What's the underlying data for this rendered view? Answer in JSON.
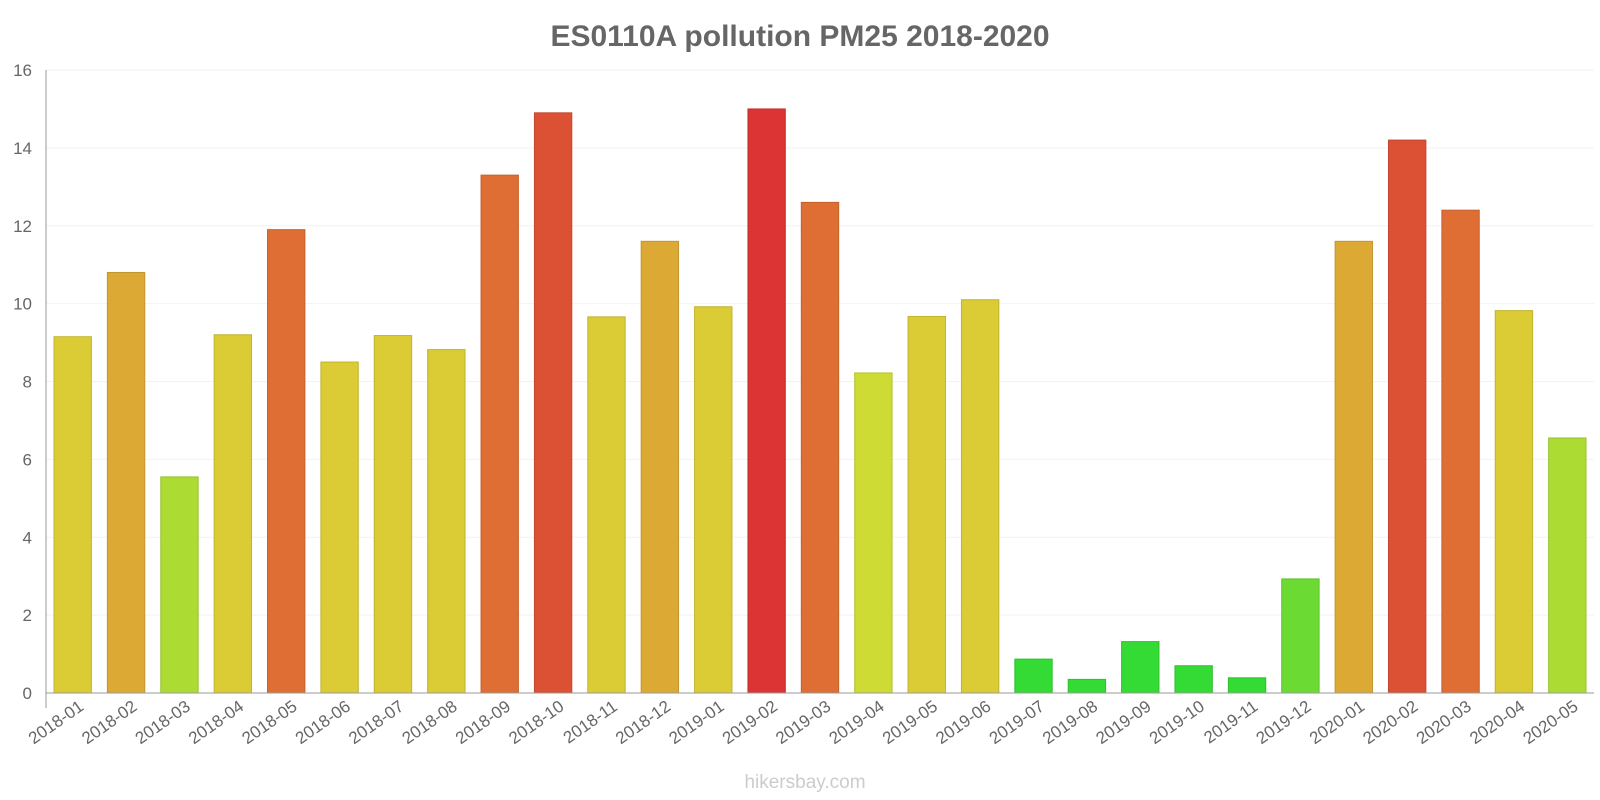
{
  "chart_data": {
    "type": "bar",
    "title": "ES0110A pollution PM25 2018-2020",
    "xlabel": "",
    "ylabel": "",
    "ylim": [
      0,
      16
    ],
    "yticks": [
      0,
      2,
      4,
      6,
      8,
      10,
      12,
      14,
      16
    ],
    "grid": true,
    "categories": [
      "2018-01",
      "2018-02",
      "2018-03",
      "2018-04",
      "2018-05",
      "2018-06",
      "2018-07",
      "2018-08",
      "2018-09",
      "2018-10",
      "2018-11",
      "2018-12",
      "2019-01",
      "2019-02",
      "2019-03",
      "2019-04",
      "2019-05",
      "2019-06",
      "2019-07",
      "2019-08",
      "2019-09",
      "2019-10",
      "2019-11",
      "2019-12",
      "2020-01",
      "2020-02",
      "2020-03",
      "2020-04",
      "2020-05"
    ],
    "values": [
      9.15,
      10.8,
      5.55,
      9.2,
      11.9,
      8.5,
      9.18,
      8.82,
      13.3,
      14.9,
      9.66,
      11.6,
      9.92,
      15.0,
      12.6,
      8.22,
      9.67,
      10.1,
      0.87,
      0.35,
      1.32,
      0.7,
      0.39,
      2.93,
      11.6,
      14.2,
      12.4,
      9.82,
      6.55
    ],
    "colors": [
      "#dbcb34",
      "#dcaa34",
      "#acdb34",
      "#dbcb34",
      "#df6e34",
      "#dbcb34",
      "#dbcb34",
      "#dbcb34",
      "#df6e34",
      "#dc5134",
      "#dbcb34",
      "#dcaa34",
      "#dbcb34",
      "#dc3434",
      "#df6e34",
      "#cddb34",
      "#dbcb34",
      "#dbcb34",
      "#33db34",
      "#33db34",
      "#33db34",
      "#33db34",
      "#33db34",
      "#6bdb34",
      "#dcaa34",
      "#dc5134",
      "#df6e34",
      "#dbcb34",
      "#acdb34"
    ]
  },
  "footer": {
    "credit": "hikersbay.com"
  }
}
